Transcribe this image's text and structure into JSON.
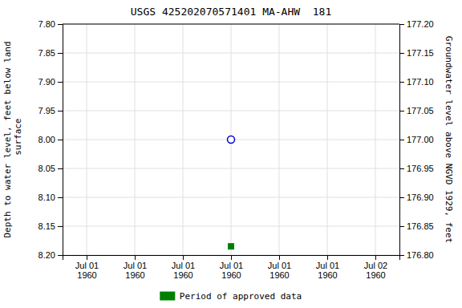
{
  "chart_data": {
    "type": "scatter",
    "title": "USGS 425202070571401 MA-AHW  181",
    "ylabel": "Depth to water level, feet below land\n surface",
    "y2label": "Groundwater level above NGVD 1929, feet",
    "categories": [
      "Jul 01\n1960",
      "Jul 01\n1960",
      "Jul 01\n1960",
      "Jul 01\n1960",
      "Jul 01\n1960",
      "Jul 01\n1960",
      "Jul 02\n1960"
    ],
    "series": [
      {
        "color": "#0000cc",
        "marker": "circle-open",
        "values": [
          null,
          null,
          null,
          8.0,
          null,
          null,
          null
        ]
      },
      {
        "name": "Period of approved data",
        "color": "#008000",
        "marker": "square",
        "values": [
          null,
          null,
          null,
          8.185,
          null,
          null,
          null
        ]
      }
    ],
    "ylim": [
      8.2,
      7.8
    ],
    "yticks": [
      {
        "value": 7.8,
        "label": "7.80"
      },
      {
        "value": 7.85,
        "label": "7.85"
      },
      {
        "value": 7.9,
        "label": "7.90"
      },
      {
        "value": 7.95,
        "label": "7.95"
      },
      {
        "value": 8.0,
        "label": "8.00"
      },
      {
        "value": 8.05,
        "label": "8.05"
      },
      {
        "value": 8.1,
        "label": "8.10"
      },
      {
        "value": 8.15,
        "label": "8.15"
      },
      {
        "value": 8.2,
        "label": "8.20"
      }
    ],
    "y2lim": [
      176.8,
      177.2
    ],
    "y2ticks": [
      {
        "value": 177.2,
        "label": "177.20"
      },
      {
        "value": 177.15,
        "label": "177.15"
      },
      {
        "value": 177.1,
        "label": "177.10"
      },
      {
        "value": 177.05,
        "label": "177.05"
      },
      {
        "value": 177.0,
        "label": "177.00"
      },
      {
        "value": 176.95,
        "label": "176.95"
      },
      {
        "value": 176.9,
        "label": "176.90"
      },
      {
        "value": 176.85,
        "label": "176.85"
      },
      {
        "value": 176.8,
        "label": "176.80"
      }
    ],
    "grid": true,
    "legend": "bottom"
  }
}
